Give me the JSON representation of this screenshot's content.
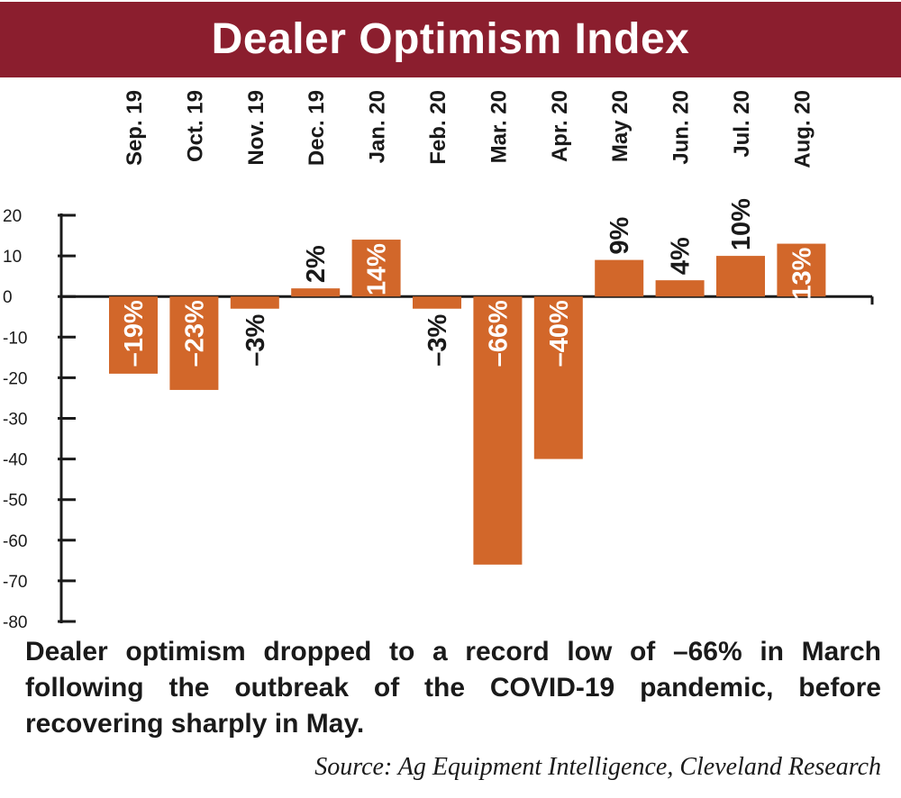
{
  "chart_data": {
    "type": "bar",
    "title": "Dealer Optimism Index",
    "categories": [
      "Sep. 19",
      "Oct. 19",
      "Nov. 19",
      "Dec. 19",
      "Jan. 20",
      "Feb. 20",
      "Mar. 20",
      "Apr. 20",
      "May 20",
      "Jun. 20",
      "Jul. 20",
      "Aug. 20"
    ],
    "values": [
      -19,
      -23,
      -3,
      2,
      14,
      -3,
      -66,
      -40,
      9,
      4,
      10,
      13
    ],
    "data_labels": [
      "–19%",
      "–23%",
      "–3%",
      "2%",
      "14%",
      "–3%",
      "–66%",
      "–40%",
      "9%",
      "4%",
      "10%",
      "13%"
    ],
    "yticks": [
      "20",
      "10",
      "0",
      "-10",
      "-20",
      "-30",
      "-40",
      "-50",
      "-60",
      "-70",
      "-80"
    ],
    "ylim": [
      -80,
      20
    ],
    "xlabel": "",
    "ylabel": "",
    "grid": false,
    "bar_color": "#d2672a",
    "label_inside_color": "#ffffff",
    "label_outside_color": "#1a1a1a"
  },
  "caption": "Dealer optimism dropped to a record low of –66% in March following the outbreak of the COVID-19 pandemic, before recovering sharply in May.",
  "source": "Source: Ag Equipment Intelligence, Cleveland Research",
  "colors": {
    "banner": "#8b1e2e",
    "text": "#1a1a1a"
  }
}
